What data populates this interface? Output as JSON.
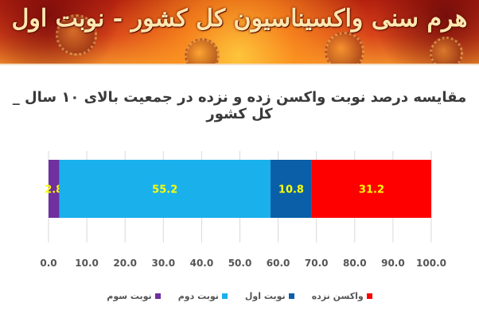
{
  "banner": {
    "title": "هرم سنی واکسیناسیون کل کشور - نوبت اول"
  },
  "chart_data": {
    "type": "bar",
    "orientation": "horizontal-stacked",
    "title": "مقایسه درصد نوبت واکسن زده و نزده در جمعیت بالای ۱۰ سال _ کل کشور",
    "xlim": [
      0,
      100
    ],
    "x_ticks": [
      "0.0",
      "10.0",
      "20.0",
      "30.0",
      "40.0",
      "50.0",
      "60.0",
      "70.0",
      "80.0",
      "90.0",
      "100.0"
    ],
    "grid": true,
    "legend_position": "bottom",
    "series": [
      {
        "name": "نوبت سوم",
        "value": 2.8,
        "label": "2.8",
        "color": "#7030a0",
        "label_color": "#ffff00"
      },
      {
        "name": "نوبت دوم",
        "value": 55.2,
        "label": "55.2",
        "color": "#1ab0ec",
        "label_color": "#ffff00"
      },
      {
        "name": "نوبت اول",
        "value": 10.8,
        "label": "10.8",
        "color": "#0a5fa8",
        "label_color": "#ffff00"
      },
      {
        "name": "واکسن نزده",
        "value": 31.2,
        "label": "31.2",
        "color": "#ff0000",
        "label_color": "#ffff00"
      }
    ]
  }
}
